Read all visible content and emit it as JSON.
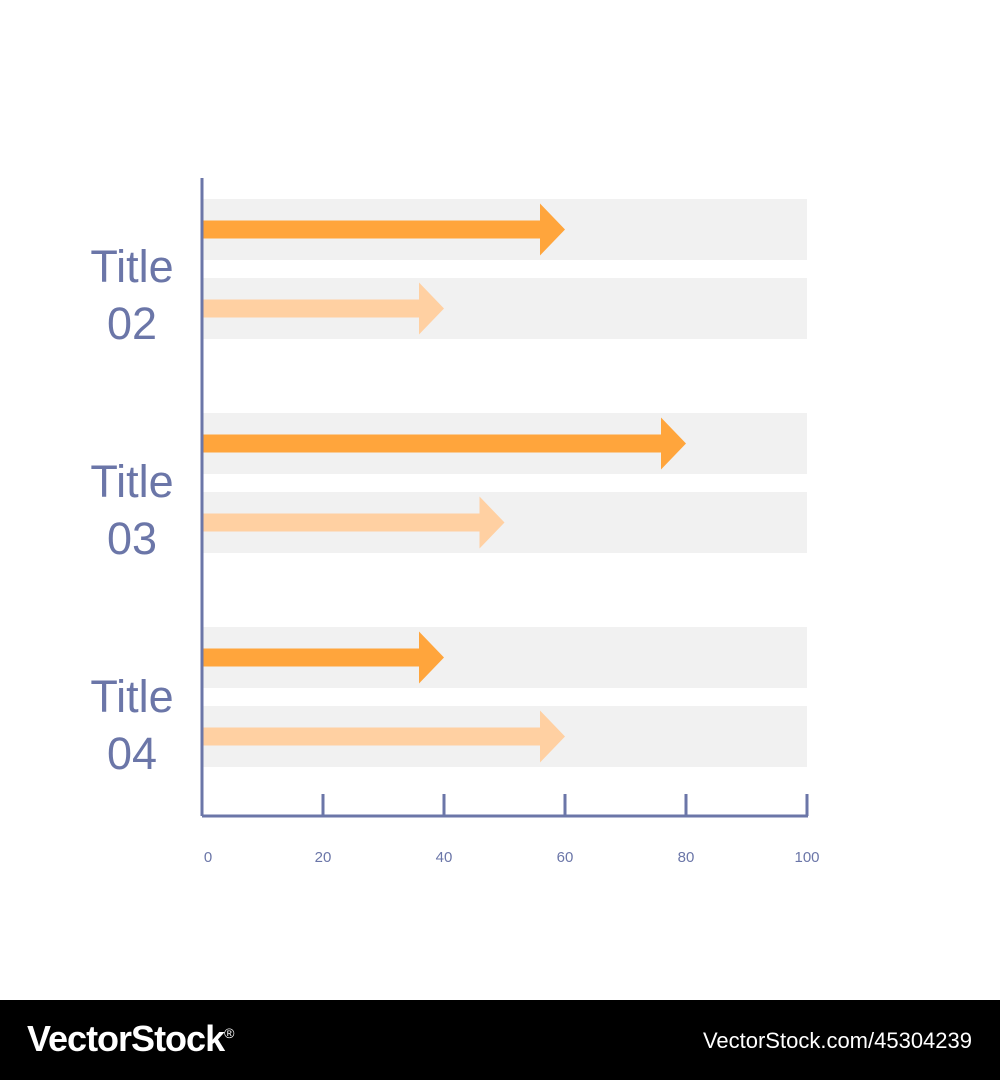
{
  "chart_data": {
    "type": "bar",
    "categories": [
      "Title 02",
      "Title 03",
      "Title 04"
    ],
    "category_lines": [
      [
        "Title",
        "02"
      ],
      [
        "Title",
        "03"
      ],
      [
        "Title",
        "04"
      ]
    ],
    "series": [
      {
        "color": "#ffa53c",
        "values": [
          60,
          80,
          40
        ]
      },
      {
        "color": "#ffd0a2",
        "values": [
          40,
          50,
          60
        ]
      }
    ],
    "xlim": [
      0,
      100
    ],
    "xticks": [
      "0",
      "20",
      "40",
      "60",
      "80",
      "100"
    ],
    "orientation": "horizontal",
    "bar_style": "arrow",
    "track_color": "#f1f1f1",
    "axis_color": "#6b76a8"
  },
  "footer": {
    "brand": "VectorStock",
    "brand_mark": "®",
    "image_id": "VectorStock.com/45304239"
  }
}
